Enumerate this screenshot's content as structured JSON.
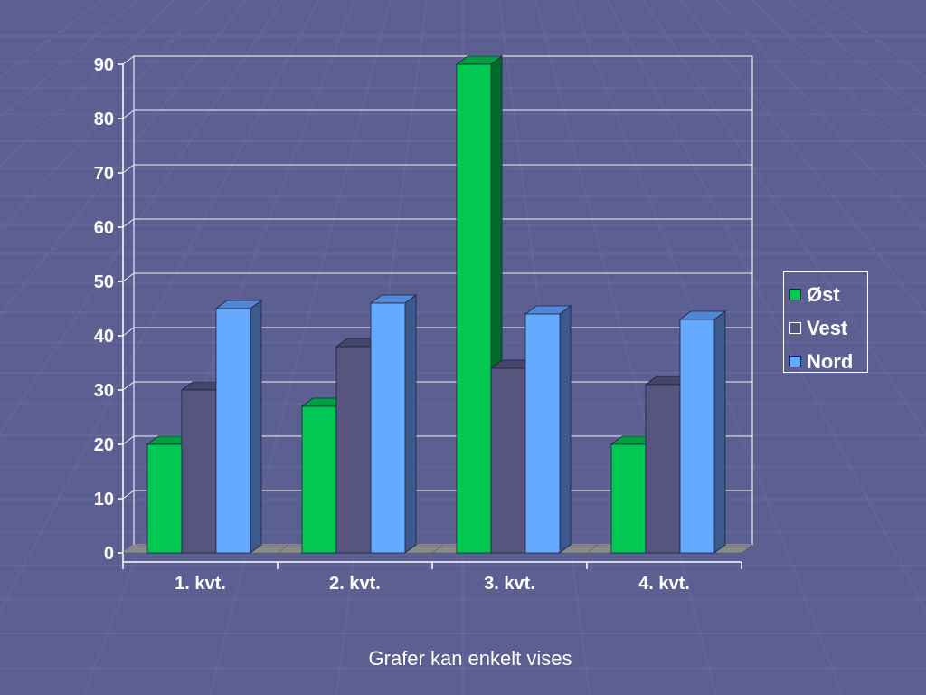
{
  "chart_data": {
    "type": "bar",
    "style": "3d-clustered-column",
    "categories": [
      "1. kvt.",
      "2. kvt.",
      "3. kvt.",
      "4. kvt."
    ],
    "series": [
      {
        "name": "Øst",
        "values": [
          20,
          27,
          90,
          20
        ],
        "color": "#00c853",
        "side_color": "#006b2a",
        "top_color": "#00a040"
      },
      {
        "name": "Vest",
        "values": [
          30,
          38,
          34,
          31
        ],
        "color": "#55557e",
        "side_color": "#3a3a5e",
        "top_color": "#45456b"
      },
      {
        "name": "Nord",
        "values": [
          45,
          46,
          44,
          43
        ],
        "color": "#66aaff",
        "side_color": "#3d5a8c",
        "top_color": "#4f88d6"
      }
    ],
    "ylim": [
      0,
      90
    ],
    "yticks": [
      0,
      10,
      20,
      30,
      40,
      50,
      60,
      70,
      80,
      90
    ],
    "grid": true,
    "legend_position": "right",
    "xlabel": "",
    "ylabel": "",
    "title": ""
  },
  "caption": "Grafer kan enkelt vises",
  "colors": {
    "background": "#5c5f92",
    "axis": "#ffffff",
    "grid": "#ffffff",
    "floor": "#8a8a8a"
  }
}
